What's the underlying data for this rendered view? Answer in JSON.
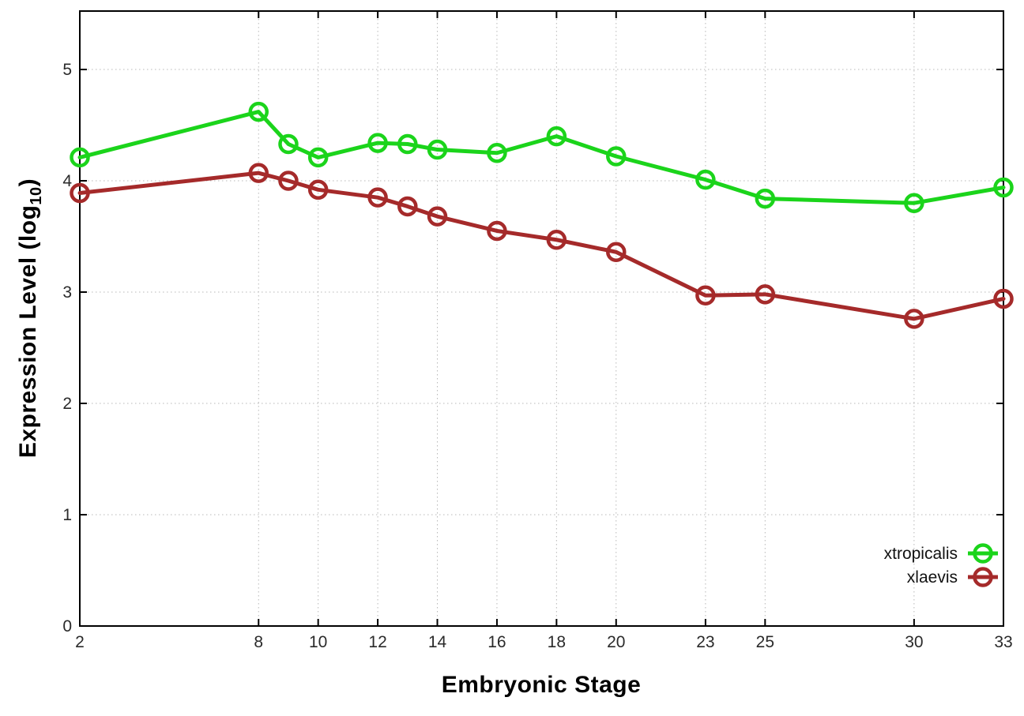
{
  "figure": {
    "background": "#ffffff",
    "xlabel": "Embryonic Stage",
    "ylabel_prefix": "Expression Level (log",
    "ylabel_sub": "10",
    "ylabel_suffix": ")"
  },
  "legend": {
    "position": "inside-bottom-right",
    "entries": [
      {
        "label": "xtropicalis",
        "color": "#1bd41b"
      },
      {
        "label": "xlaevis",
        "color": "#a52a2a"
      }
    ]
  },
  "chart_data": {
    "type": "line",
    "title": "",
    "xlabel": "Embryonic Stage",
    "ylabel": "Expression Level (log10)",
    "xlim": [
      2,
      33
    ],
    "ylim": [
      0,
      5.525
    ],
    "x_ticks": [
      2,
      8,
      10,
      12,
      14,
      16,
      18,
      20,
      23,
      25,
      30,
      33
    ],
    "y_ticks": [
      0,
      1,
      2,
      3,
      4,
      5
    ],
    "grid": true,
    "marker": "open-circle",
    "x": [
      2,
      8,
      9,
      10,
      12,
      13,
      14,
      16,
      18,
      20,
      23,
      25,
      30,
      33
    ],
    "series": [
      {
        "name": "xtropicalis",
        "color": "#1bd41b",
        "values": [
          4.21,
          4.62,
          4.33,
          4.21,
          4.34,
          4.33,
          4.28,
          4.25,
          4.4,
          4.22,
          4.01,
          3.84,
          3.8,
          3.94
        ]
      },
      {
        "name": "xlaevis",
        "color": "#a52a2a",
        "values": [
          3.89,
          4.07,
          4.0,
          3.92,
          3.85,
          3.77,
          3.68,
          3.55,
          3.47,
          3.36,
          2.97,
          2.98,
          2.76,
          2.94
        ]
      }
    ]
  },
  "style": {
    "axis_color": "#000000",
    "grid_color": "#b8b8b8",
    "tick_label_color": "#2a2a2a",
    "tick_label_size": 21,
    "legend_label_size": 21,
    "line_width": 5,
    "marker_radius": 10.5,
    "marker_stroke": 4.5
  }
}
